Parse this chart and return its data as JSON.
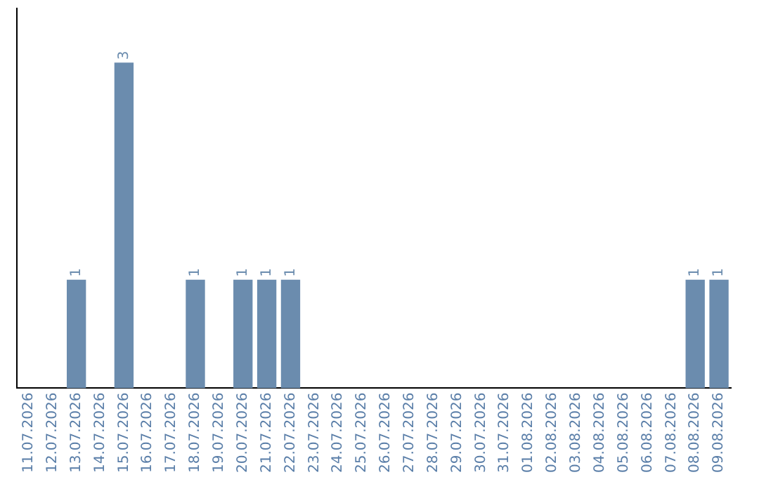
{
  "chart_data": {
    "type": "bar",
    "categories": [
      "11.07.2026",
      "12.07.2026",
      "13.07.2026",
      "14.07.2026",
      "15.07.2026",
      "16.07.2026",
      "17.07.2026",
      "18.07.2026",
      "19.07.2026",
      "20.07.2026",
      "21.07.2026",
      "22.07.2026",
      "23.07.2026",
      "24.07.2026",
      "25.07.2026",
      "26.07.2026",
      "27.07.2026",
      "28.07.2026",
      "29.07.2026",
      "30.07.2026",
      "31.07.2026",
      "01.08.2026",
      "02.08.2026",
      "03.08.2026",
      "04.08.2026",
      "05.08.2026",
      "06.08.2026",
      "07.08.2026",
      "08.08.2026",
      "09.08.2026"
    ],
    "values": [
      0,
      0,
      1,
      0,
      3,
      0,
      0,
      1,
      0,
      1,
      1,
      1,
      0,
      0,
      0,
      0,
      0,
      0,
      0,
      0,
      0,
      0,
      0,
      0,
      0,
      0,
      0,
      0,
      1,
      1
    ],
    "value_labels": [
      null,
      null,
      "1",
      null,
      "3",
      null,
      null,
      "1",
      null,
      "1",
      "1",
      "1",
      null,
      null,
      null,
      null,
      null,
      null,
      null,
      null,
      null,
      null,
      null,
      null,
      null,
      null,
      null,
      null,
      "1",
      "1"
    ],
    "color": "#6b8cae",
    "grid": false,
    "legend": false,
    "tick_labels": "x"
  }
}
